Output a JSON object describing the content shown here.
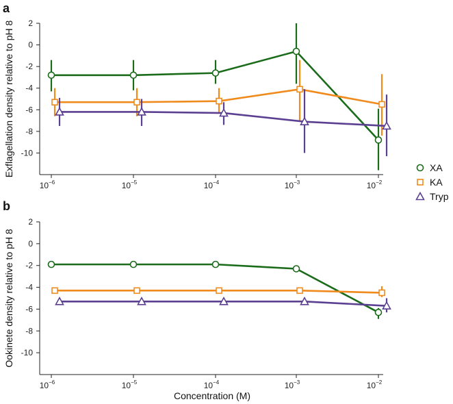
{
  "chart_data": [
    {
      "type": "line",
      "panel": "a",
      "ylabel": "Exflagellation density relative to pH 8",
      "xlabel": "",
      "x_scale": "log",
      "categories": [
        "10^-6",
        "10^-5",
        "10^-4",
        "10^-3",
        "10^-2"
      ],
      "x_tick_labels": [
        {
          "base": "10",
          "exp": "−6"
        },
        {
          "base": "10",
          "exp": "−5"
        },
        {
          "base": "10",
          "exp": "−4"
        },
        {
          "base": "10",
          "exp": "−3"
        },
        {
          "base": "10",
          "exp": "−2"
        }
      ],
      "y_ticks": [
        2,
        0,
        -2,
        -4,
        -6,
        -8,
        -10
      ],
      "ylim": [
        -12,
        2
      ],
      "series": [
        {
          "name": "XA",
          "color": "#1a6b1a",
          "marker": "circle",
          "values": [
            -2.8,
            -2.8,
            -2.6,
            -0.6,
            -8.8
          ],
          "err_low": [
            -4.3,
            -4.2,
            -3.6,
            -3.6,
            -11.6
          ],
          "err_high": [
            -1.4,
            -1.4,
            -1.4,
            2.0,
            -5.9
          ]
        },
        {
          "name": "KA",
          "color": "#f08a1c",
          "marker": "square",
          "values": [
            -5.3,
            -5.3,
            -5.2,
            -4.1,
            -5.5
          ],
          "err_low": [
            -6.6,
            -6.6,
            -6.3,
            -7.0,
            -8.4
          ],
          "err_high": [
            -4.0,
            -4.0,
            -4.0,
            -1.4,
            -2.7
          ]
        },
        {
          "name": "Tryp",
          "color": "#5b3f91",
          "marker": "triangle",
          "values": [
            -6.2,
            -6.2,
            -6.3,
            -7.1,
            -7.5
          ],
          "err_low": [
            -7.5,
            -7.5,
            -7.4,
            -10.0,
            -10.3
          ],
          "err_high": [
            -4.9,
            -5.0,
            -5.3,
            -4.1,
            -4.6
          ]
        }
      ]
    },
    {
      "type": "line",
      "panel": "b",
      "ylabel": "Ookinete density relative to pH 8",
      "xlabel": "Concentration (M)",
      "x_scale": "log",
      "categories": [
        "10^-6",
        "10^-5",
        "10^-4",
        "10^-3",
        "10^-2"
      ],
      "x_tick_labels": [
        {
          "base": "10",
          "exp": "−6"
        },
        {
          "base": "10",
          "exp": "−5"
        },
        {
          "base": "10",
          "exp": "−4"
        },
        {
          "base": "10",
          "exp": "−3"
        },
        {
          "base": "10",
          "exp": "−2"
        }
      ],
      "y_ticks": [
        2,
        0,
        -2,
        -4,
        -6,
        -8,
        -10
      ],
      "ylim": [
        -12,
        2
      ],
      "series": [
        {
          "name": "XA",
          "color": "#1a6b1a",
          "marker": "circle",
          "values": [
            -1.9,
            -1.9,
            -1.9,
            -2.3,
            -6.3
          ],
          "err_low": [
            -2.1,
            -2.1,
            -2.1,
            -2.5,
            -6.9
          ],
          "err_high": [
            -1.6,
            -1.6,
            -1.7,
            -2.0,
            -5.9
          ]
        },
        {
          "name": "KA",
          "color": "#f08a1c",
          "marker": "square",
          "values": [
            -4.3,
            -4.3,
            -4.3,
            -4.3,
            -4.5
          ],
          "err_low": [
            -4.5,
            -4.5,
            -4.5,
            -4.5,
            -4.9
          ],
          "err_high": [
            -4.1,
            -4.1,
            -4.1,
            -4.1,
            -3.9
          ]
        },
        {
          "name": "Tryp",
          "color": "#5b3f91",
          "marker": "triangle",
          "values": [
            -5.3,
            -5.3,
            -5.3,
            -5.3,
            -5.7
          ],
          "err_low": [
            -5.6,
            -5.6,
            -5.5,
            -5.5,
            -6.3
          ],
          "err_high": [
            -5.1,
            -5.1,
            -5.1,
            -5.1,
            -5.0
          ]
        }
      ]
    }
  ],
  "legend": [
    {
      "name": "XA",
      "color": "#1a6b1a",
      "marker": "circle"
    },
    {
      "name": "KA",
      "color": "#f08a1c",
      "marker": "square"
    },
    {
      "name": "Tryp",
      "color": "#5b3f91",
      "marker": "triangle"
    }
  ]
}
